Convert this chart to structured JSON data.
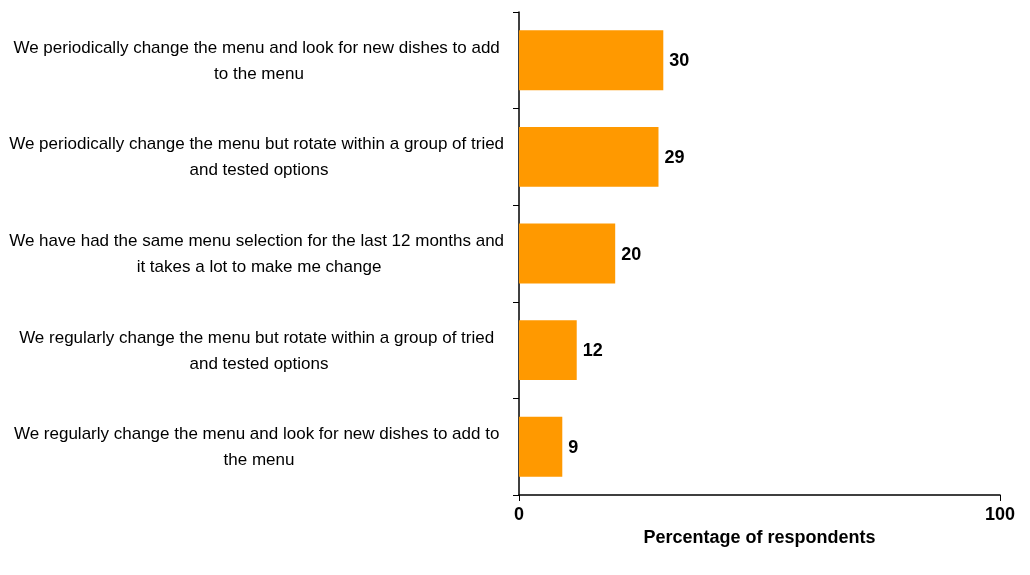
{
  "chart_data": {
    "type": "bar",
    "orientation": "horizontal",
    "categories": [
      "We periodically change the menu and look for new dishes to add to the menu",
      "We periodically change the menu but rotate within a group of tried and tested options",
      "We have had the same menu selection for the last 12 months and it takes a lot to make me change",
      "We regularly change the menu but rotate within a group of tried and tested options",
      "We regularly change the menu and look for new dishes to add to the menu"
    ],
    "values": [
      30,
      29,
      20,
      12,
      9
    ],
    "color": "#ff9900",
    "xlabel": "Percentage of respondents",
    "xlim": [
      0,
      100
    ],
    "xticks": [
      0,
      100
    ],
    "data_labels": true
  }
}
